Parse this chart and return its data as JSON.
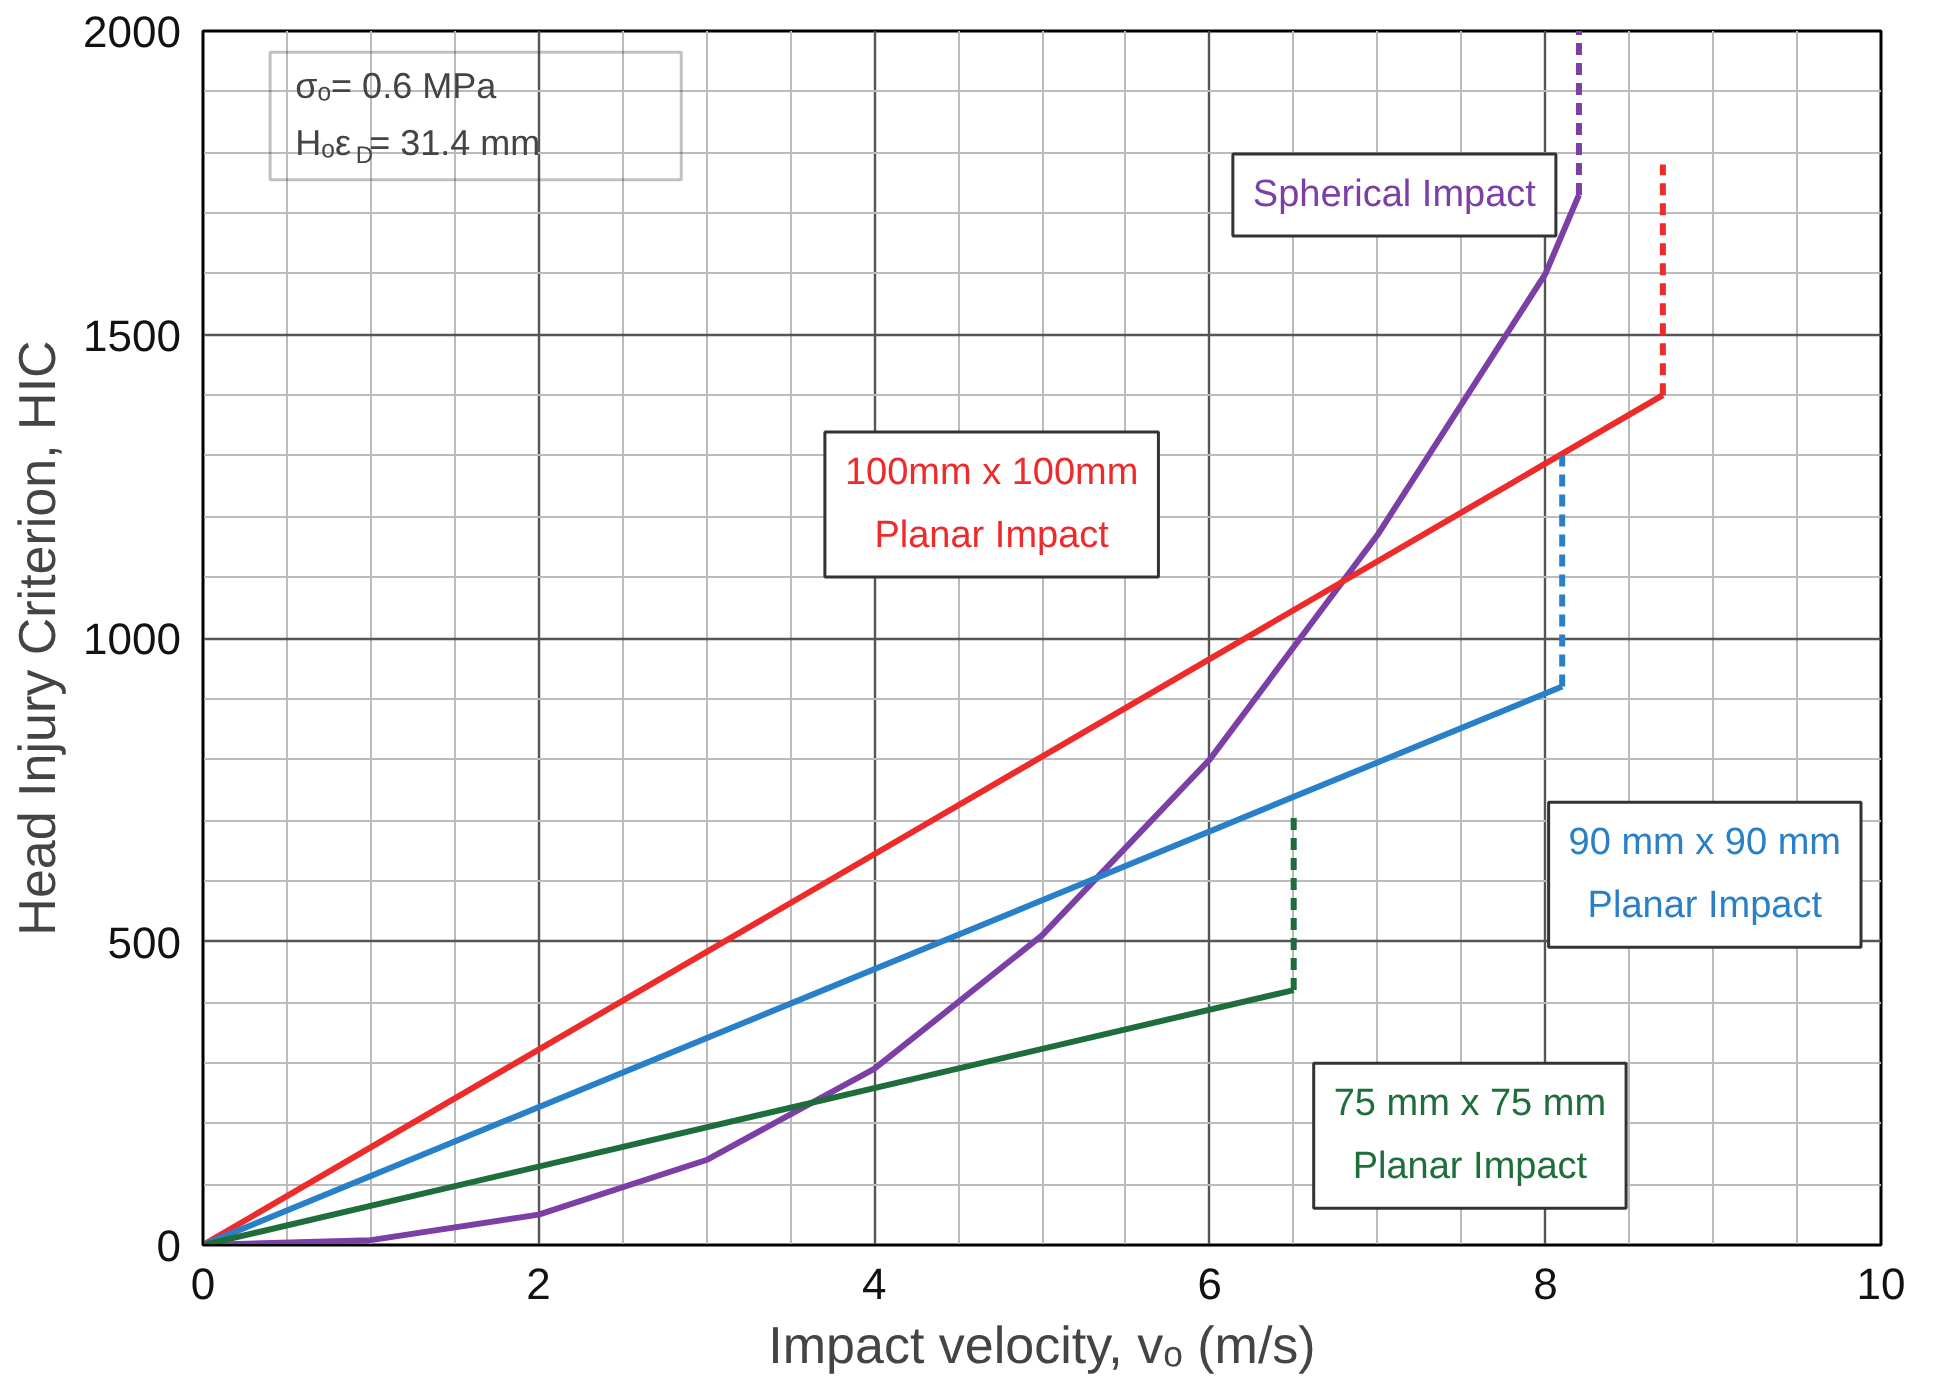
{
  "chart_data": {
    "type": "line",
    "xlabel": "Impact velocity, vₒ (m/s)",
    "ylabel": "Head Injury Criterion, HIC",
    "xlim": [
      0,
      10
    ],
    "ylim": [
      0,
      2000
    ],
    "xticks": [
      0,
      2,
      4,
      6,
      8,
      10
    ],
    "yticks": [
      0,
      500,
      1000,
      1500,
      2000
    ],
    "grid": true,
    "marker": "none",
    "line_style": "solid",
    "annotations": [
      "σₒ= 0.6 MPa\nHₒε$_{D}$= 31.4 mm"
    ],
    "series": [
      {
        "name": "Spherical Impact",
        "color": "#7b3fa6",
        "x": [
          0,
          1,
          2,
          3,
          4,
          5,
          6,
          7,
          8,
          8.2
        ],
        "values": [
          0,
          8,
          50,
          140,
          290,
          510,
          800,
          1170,
          1600,
          1730
        ]
      },
      {
        "color": "#7b3fa6",
        "line_style": "dashed",
        "x": [
          8.2,
          8.2
        ],
        "values": [
          1730,
          2000
        ]
      },
      {
        "name": "100mm x 100mm\nPlanar Impact",
        "color": "#ed2b2b",
        "x": [
          0,
          8.7
        ],
        "values": [
          0,
          1400
        ]
      },
      {
        "color": "#ed2b2b",
        "line_style": "dashed",
        "x": [
          8.7,
          8.7
        ],
        "values": [
          1400,
          1780
        ]
      },
      {
        "name": "90 mm x 90 mm\nPlanar Impact",
        "color": "#2a80c8",
        "x": [
          0,
          8.1
        ],
        "values": [
          0,
          920
        ]
      },
      {
        "color": "#2a80c8",
        "line_style": "dashed",
        "x": [
          8.1,
          8.1
        ],
        "values": [
          920,
          1300
        ]
      },
      {
        "name": "75 mm x 75 mm\nPlanar Impact",
        "color": "#1e6e3c",
        "x": [
          0,
          6.5
        ],
        "values": [
          0,
          420
        ]
      },
      {
        "color": "#1e6e3c",
        "line_style": "dashed",
        "x": [
          6.5,
          6.5
        ],
        "values": [
          420,
          710
        ]
      }
    ]
  }
}
